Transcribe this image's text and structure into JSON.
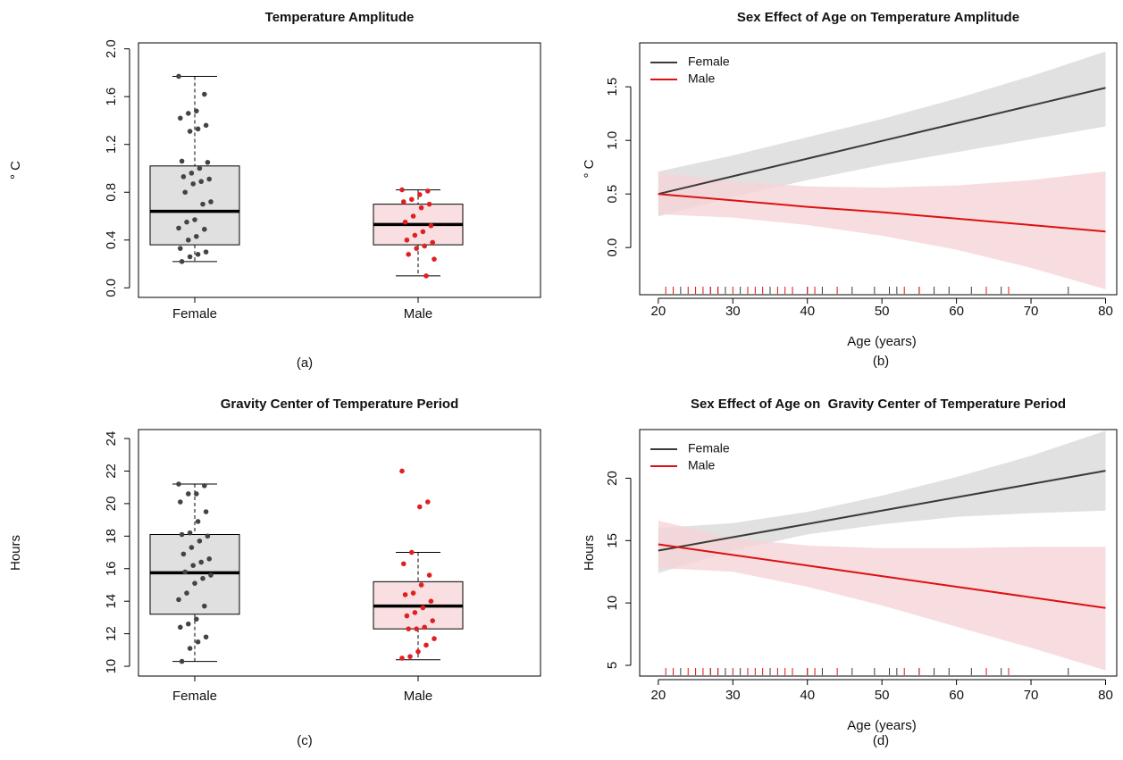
{
  "chart_data": [
    {
      "type": "box",
      "title": "Temperature Amplitude",
      "ylabel": "° C",
      "caption": "(a)",
      "categories": [
        "Female",
        "Male"
      ],
      "ylim": [
        -0.08,
        2.05
      ],
      "yticks": [
        {
          "value": 0,
          "label": "0.0"
        },
        0.4,
        0.8,
        1.2,
        1.6,
        {
          "value": 2,
          "label": "2.0"
        }
      ],
      "fills": [
        "#e0e0e0",
        "#f9dfe1"
      ],
      "point_colors": [
        "#444444",
        "#e02020"
      ],
      "boxes": [
        {
          "whisker_low": 0.22,
          "q1": 0.36,
          "median": 0.64,
          "q3": 1.02,
          "whisker_high": 1.77
        },
        {
          "whisker_low": 0.1,
          "q1": 0.36,
          "median": 0.53,
          "q3": 0.7,
          "whisker_high": 0.82
        }
      ],
      "points": [
        [
          1.77,
          1.62,
          1.48,
          1.46,
          1.42,
          1.36,
          1.33,
          1.31,
          1.06,
          1.05,
          1.0,
          0.96,
          0.93,
          0.91,
          0.89,
          0.87,
          0.8,
          0.72,
          0.7,
          0.57,
          0.55,
          0.5,
          0.49,
          0.43,
          0.4,
          0.33,
          0.3,
          0.28,
          0.26,
          0.22
        ],
        [
          0.82,
          0.81,
          0.78,
          0.74,
          0.72,
          0.7,
          0.67,
          0.6,
          0.55,
          0.52,
          0.47,
          0.44,
          0.4,
          0.38,
          0.35,
          0.33,
          0.28,
          0.24,
          0.1
        ]
      ]
    },
    {
      "type": "band-line",
      "title": "Sex Effect of Age on Temperature Amplitude",
      "xlabel": "Age (years)",
      "ylabel": "° C",
      "caption": "(b)",
      "legend": "top-left",
      "x": [
        20,
        30,
        40,
        50,
        60,
        70,
        80
      ],
      "xlim": [
        17.5,
        81.5
      ],
      "xticks": [
        20,
        30,
        40,
        50,
        60,
        70,
        80
      ],
      "ylim": [
        -0.44,
        1.91
      ],
      "yticks": [
        {
          "value": 0,
          "label": "0.0"
        },
        0.5,
        {
          "value": 1,
          "label": "1.0"
        },
        1.5
      ],
      "series": [
        {
          "name": "Female",
          "color": "#3a3a3a",
          "band_color": "#d9d9d9",
          "values": [
            0.5,
            0.665,
            0.83,
            0.995,
            1.16,
            1.325,
            1.49
          ],
          "lower": [
            0.29,
            0.47,
            0.63,
            0.77,
            0.89,
            1.01,
            1.13
          ],
          "upper": [
            0.71,
            0.86,
            1.03,
            1.2,
            1.39,
            1.6,
            1.83
          ],
          "rug": [
            23,
            27,
            28,
            29,
            31,
            35,
            40,
            42,
            46,
            49,
            51,
            52,
            55,
            57,
            59,
            62,
            66,
            75
          ]
        },
        {
          "name": "Male",
          "color": "#dd1111",
          "band_color": "#f6d5d8",
          "values": [
            0.5,
            0.44,
            0.38,
            0.33,
            0.27,
            0.21,
            0.15
          ],
          "lower": [
            0.31,
            0.28,
            0.21,
            0.11,
            -0.02,
            -0.19,
            -0.39
          ],
          "upper": [
            0.7,
            0.62,
            0.57,
            0.56,
            0.58,
            0.63,
            0.71
          ],
          "rug": [
            21,
            22,
            24,
            25,
            26,
            27,
            28,
            30,
            32,
            33,
            34,
            36,
            37,
            38,
            40,
            41,
            44,
            53,
            55,
            64,
            67
          ]
        }
      ]
    },
    {
      "type": "box",
      "title": "Gravity Center of Temperature Period",
      "ylabel": "Hours",
      "caption": "(c)",
      "categories": [
        "Female",
        "Male"
      ],
      "ylim": [
        9.4,
        24.55
      ],
      "yticks": [
        10,
        12,
        14,
        16,
        18,
        20,
        22,
        24
      ],
      "fills": [
        "#e0e0e0",
        "#f9dfe1"
      ],
      "point_colors": [
        "#444444",
        "#e02020"
      ],
      "boxes": [
        {
          "whisker_low": 10.3,
          "q1": 13.2,
          "median": 15.75,
          "q3": 18.1,
          "whisker_high": 21.2
        },
        {
          "whisker_low": 10.4,
          "q1": 12.3,
          "median": 13.7,
          "q3": 15.2,
          "whisker_high": 17.0
        }
      ],
      "points": [
        [
          21.2,
          21.1,
          20.6,
          20.6,
          20.1,
          19.5,
          18.9,
          18.2,
          18.1,
          18.0,
          17.7,
          17.3,
          16.9,
          16.6,
          16.4,
          16.2,
          15.8,
          15.6,
          15.4,
          15.1,
          14.5,
          14.1,
          13.7,
          12.9,
          12.6,
          12.4,
          11.8,
          11.5,
          11.1,
          10.3
        ],
        [
          22.0,
          20.1,
          19.8,
          17.0,
          16.3,
          15.6,
          15.0,
          14.5,
          14.4,
          14.0,
          13.6,
          13.3,
          13.1,
          12.8,
          12.4,
          12.3,
          12.3,
          11.7,
          11.3,
          10.9,
          10.6,
          10.5
        ]
      ]
    },
    {
      "type": "band-line",
      "title": "Sex Effect of Age on  Gravity Center of Temperature Period",
      "xlabel": "Age (years)",
      "ylabel": "Hours",
      "caption": "(d)",
      "legend": "top-left",
      "x": [
        20,
        30,
        40,
        50,
        60,
        70,
        80
      ],
      "xlim": [
        17.5,
        81.5
      ],
      "xticks": [
        20,
        30,
        40,
        50,
        60,
        70,
        80
      ],
      "ylim": [
        4.14,
        23.9
      ],
      "yticks": [
        5,
        10,
        15,
        20
      ],
      "series": [
        {
          "name": "Female",
          "color": "#3a3a3a",
          "band_color": "#d9d9d9",
          "values": [
            14.2,
            15.27,
            16.33,
            17.4,
            18.47,
            19.53,
            20.6
          ],
          "lower": [
            12.4,
            14.2,
            15.5,
            16.3,
            16.9,
            17.2,
            17.4
          ],
          "upper": [
            16.0,
            16.4,
            17.3,
            18.6,
            20.1,
            21.8,
            23.8
          ],
          "rug": [
            23,
            27,
            28,
            29,
            31,
            35,
            40,
            42,
            46,
            49,
            51,
            52,
            55,
            57,
            59,
            62,
            66,
            75
          ]
        },
        {
          "name": "Male",
          "color": "#dd1111",
          "band_color": "#f6d5d8",
          "values": [
            14.7,
            13.85,
            13.0,
            12.15,
            11.3,
            10.45,
            9.6
          ],
          "lower": [
            12.8,
            12.5,
            11.3,
            9.8,
            8.1,
            6.4,
            4.6
          ],
          "upper": [
            16.6,
            15.2,
            14.6,
            14.4,
            14.4,
            14.5,
            14.5
          ],
          "rug": [
            21,
            22,
            24,
            25,
            26,
            27,
            28,
            30,
            32,
            33,
            34,
            36,
            37,
            38,
            40,
            41,
            44,
            53,
            55,
            64,
            67
          ]
        }
      ]
    }
  ]
}
